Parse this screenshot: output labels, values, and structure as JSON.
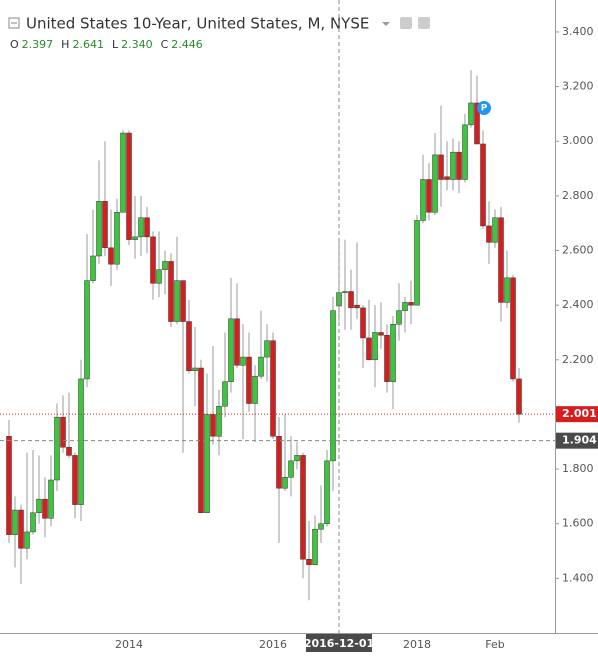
{
  "chart_data": {
    "type": "candlestick",
    "title": "United States 10-Year, United States, M, NYSE",
    "ohlc_legend": {
      "names": [
        "O",
        "H",
        "L",
        "C"
      ],
      "values": [
        2.397,
        2.641,
        2.34,
        2.446
      ],
      "value_labels": [
        "2.397",
        "2.641",
        "2.340",
        "2.446"
      ]
    },
    "categories": [
      null,
      null,
      null,
      null,
      null,
      null,
      null,
      null,
      null,
      null,
      null,
      null,
      null,
      null,
      null,
      null,
      null,
      null,
      null,
      null,
      "2014",
      null,
      null,
      null,
      null,
      null,
      null,
      null,
      null,
      null,
      null,
      null,
      null,
      null,
      null,
      null,
      null,
      null,
      null,
      null,
      null,
      null,
      null,
      null,
      "2016",
      null,
      null,
      null,
      null,
      null,
      null,
      null,
      null,
      null,
      null,
      null,
      null,
      null,
      null,
      null,
      null,
      null,
      null,
      null,
      null,
      null,
      null,
      null,
      "2018",
      null,
      null,
      null,
      null,
      null,
      null,
      null,
      null,
      null,
      null,
      null,
      null,
      "Feb",
      null,
      null,
      null,
      null
    ],
    "open": [
      1.92,
      1.56,
      1.65,
      1.51,
      1.57,
      1.64,
      1.69,
      1.62,
      1.76,
      1.99,
      1.88,
      1.85,
      1.67,
      2.13,
      2.49,
      2.58,
      2.78,
      2.61,
      2.55,
      2.74,
      3.03,
      2.64,
      2.65,
      2.72,
      2.65,
      2.48,
      2.53,
      2.56,
      2.34,
      2.49,
      2.34,
      2.16,
      2.17,
      1.64,
      2.0,
      1.92,
      2.03,
      2.12,
      2.35,
      2.18,
      2.21,
      2.04,
      2.14,
      2.21,
      2.27,
      1.92,
      1.73,
      1.77,
      1.83,
      1.85,
      1.47,
      1.45,
      1.58,
      1.6,
      1.83,
      2.397,
      2.446,
      2.45,
      2.4,
      2.39,
      2.28,
      2.2,
      2.3,
      2.29,
      2.12,
      2.33,
      2.38,
      2.41,
      2.4,
      2.71,
      2.86,
      2.74,
      2.95,
      2.87,
      2.86,
      2.96,
      2.86,
      3.06,
      3.14,
      2.99,
      2.69,
      2.63,
      2.72,
      2.41,
      2.5,
      2.13
    ],
    "high": [
      1.98,
      1.7,
      1.67,
      1.86,
      1.87,
      1.85,
      1.77,
      1.85,
      2.04,
      2.07,
      2.08,
      1.86,
      2.2,
      2.66,
      2.75,
      2.93,
      3.0,
      2.75,
      2.79,
      3.04,
      3.04,
      2.8,
      2.8,
      2.76,
      2.67,
      2.67,
      2.6,
      2.59,
      2.65,
      2.49,
      2.42,
      2.32,
      2.2,
      2.15,
      2.25,
      2.09,
      2.3,
      2.5,
      2.48,
      2.33,
      2.3,
      2.18,
      2.38,
      2.33,
      2.3,
      1.99,
      2.0,
      1.92,
      1.9,
      1.86,
      1.61,
      1.63,
      1.74,
      1.87,
      2.43,
      2.641,
      2.64,
      2.53,
      2.63,
      2.4,
      2.42,
      2.4,
      2.41,
      2.33,
      2.36,
      2.48,
      2.43,
      2.49,
      2.73,
      2.95,
      2.92,
      3.03,
      3.13,
      3.0,
      3.01,
      3.0,
      3.1,
      3.26,
      3.24,
      3.04,
      2.78,
      2.75,
      2.76,
      2.6,
      2.51,
      2.17
    ],
    "low": [
      1.53,
      1.44,
      1.38,
      1.47,
      1.56,
      1.6,
      1.55,
      1.59,
      1.72,
      1.86,
      1.84,
      1.62,
      1.61,
      2.1,
      2.48,
      2.55,
      2.58,
      2.47,
      2.53,
      2.74,
      2.62,
      2.57,
      2.58,
      2.59,
      2.42,
      2.43,
      2.44,
      2.32,
      2.33,
      1.86,
      2.15,
      2.03,
      1.64,
      1.64,
      1.89,
      1.85,
      1.99,
      2.08,
      2.17,
      1.91,
      2.01,
      1.9,
      2.13,
      2.12,
      1.91,
      1.53,
      1.72,
      1.7,
      1.8,
      1.4,
      1.32,
      1.45,
      1.53,
      1.59,
      1.72,
      2.34,
      2.31,
      2.31,
      2.35,
      2.17,
      2.2,
      2.1,
      2.24,
      2.08,
      2.02,
      2.27,
      2.3,
      2.33,
      2.4,
      2.7,
      2.71,
      2.73,
      2.76,
      2.82,
      2.82,
      2.81,
      2.85,
      3.05,
      2.99,
      2.68,
      2.55,
      2.61,
      2.34,
      2.39,
      2.12,
      1.97
    ],
    "close": [
      1.56,
      1.65,
      1.51,
      1.57,
      1.64,
      1.69,
      1.62,
      1.76,
      1.99,
      1.88,
      1.85,
      1.67,
      2.13,
      2.49,
      2.58,
      2.78,
      2.61,
      2.55,
      2.74,
      3.03,
      2.64,
      2.65,
      2.72,
      2.65,
      2.48,
      2.53,
      2.56,
      2.34,
      2.49,
      2.34,
      2.16,
      2.17,
      1.64,
      2.0,
      1.92,
      2.03,
      2.12,
      2.35,
      2.18,
      2.21,
      2.04,
      2.14,
      2.21,
      2.27,
      1.92,
      1.73,
      1.77,
      1.83,
      1.85,
      1.47,
      1.45,
      1.58,
      1.6,
      1.83,
      2.38,
      2.446,
      2.45,
      2.39,
      2.39,
      2.28,
      2.2,
      2.3,
      2.29,
      2.12,
      2.33,
      2.38,
      2.41,
      2.4,
      2.71,
      2.86,
      2.74,
      2.95,
      2.86,
      2.86,
      2.96,
      2.86,
      3.06,
      3.14,
      2.99,
      2.69,
      2.63,
      2.72,
      2.41,
      2.5,
      2.13,
      2.001
    ],
    "up_color": "#3cc63c",
    "down_color": "#d61e1e",
    "ylim": [
      1.2,
      3.517
    ],
    "yticks": [
      {
        "value": 1.4,
        "label": "1.400"
      },
      {
        "value": 1.6,
        "label": "1.600"
      },
      {
        "value": 1.8,
        "label": "1.800"
      },
      {
        "value": 2.0,
        "label": "2.000"
      },
      {
        "value": 2.2,
        "label": "2.200"
      },
      {
        "value": 2.4,
        "label": "2.400"
      },
      {
        "value": 2.6,
        "label": "2.600"
      },
      {
        "value": 2.8,
        "label": "2.800"
      },
      {
        "value": 3.0,
        "label": "3.000"
      },
      {
        "value": 3.2,
        "label": "3.200"
      },
      {
        "value": 3.4,
        "label": "3.400"
      }
    ],
    "last_price": {
      "value": 2.001,
      "label": "2.001"
    },
    "crosshair": {
      "x_label": "2016-12-01",
      "y": {
        "value": 1.904,
        "label": "1.904"
      }
    }
  }
}
